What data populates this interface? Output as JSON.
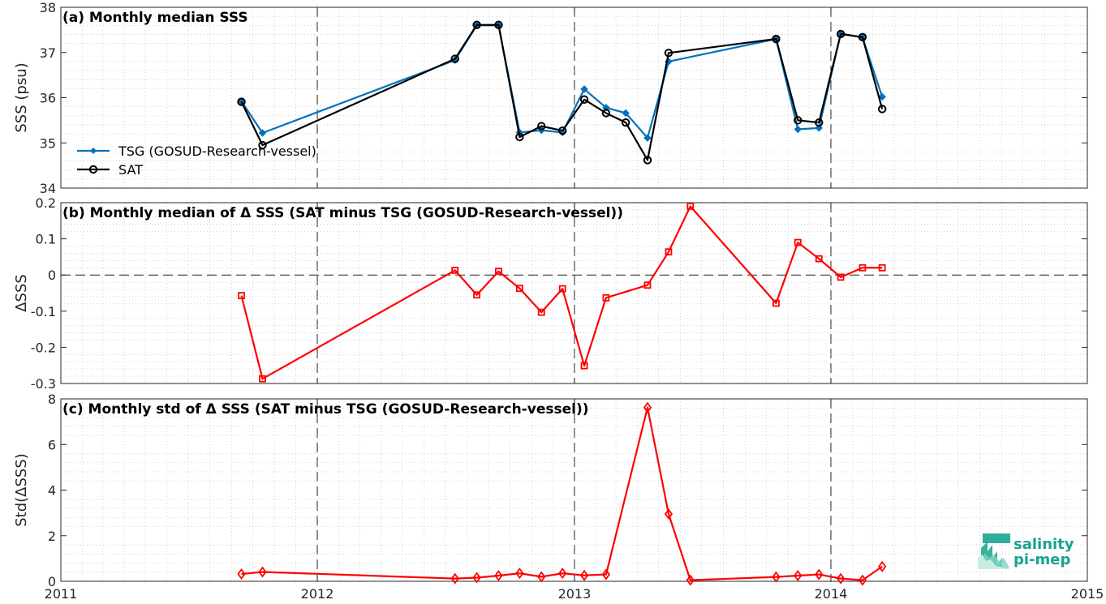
{
  "chart_data": [
    {
      "type": "line",
      "title": "(a) Monthly median SSS",
      "ylabel": "SSS (psu)",
      "ylim": [
        34,
        38
      ],
      "yticks": [
        34,
        35,
        36,
        37,
        38
      ],
      "xlim": [
        "2011-01-01",
        "2015-01-01"
      ],
      "grid": "dotted minor",
      "legend_position": "lower-left",
      "series": [
        {
          "name": "TSG (GOSUD-Research-vessel)",
          "color": "#0072BD",
          "marker": "dot",
          "x": [
            "2011-09-15",
            "2011-10-15",
            "2012-07-15",
            "2012-08-15",
            "2012-09-15",
            "2012-10-15",
            "2012-11-15",
            "2012-12-15",
            "2013-01-15",
            "2013-02-15",
            "2013-03-15",
            "2013-04-15",
            "2013-05-15",
            "2013-10-15",
            "2013-11-15",
            "2013-12-15",
            "2014-01-15",
            "2014-02-15",
            "2014-03-15"
          ],
          "values": [
            35.92,
            35.22,
            36.83,
            37.6,
            37.6,
            35.23,
            35.28,
            35.23,
            36.19,
            35.78,
            35.66,
            35.11,
            36.8,
            37.3,
            35.3,
            35.33,
            37.42,
            37.33,
            36.02
          ]
        },
        {
          "name": "SAT",
          "color": "#000000",
          "marker": "circle",
          "x": [
            "2011-09-15",
            "2011-10-15",
            "2012-07-15",
            "2012-08-15",
            "2012-09-15",
            "2012-10-15",
            "2012-11-15",
            "2012-12-15",
            "2013-01-15",
            "2013-02-15",
            "2013-03-15",
            "2013-04-15",
            "2013-05-15",
            "2013-10-15",
            "2013-11-15",
            "2013-12-15",
            "2014-01-15",
            "2014-02-15",
            "2014-03-15"
          ],
          "values": [
            35.91,
            34.95,
            36.86,
            37.61,
            37.61,
            35.13,
            35.37,
            35.27,
            35.96,
            35.66,
            35.45,
            34.62,
            36.99,
            37.3,
            35.5,
            35.45,
            37.41,
            37.34,
            35.75
          ]
        }
      ]
    },
    {
      "type": "line",
      "title": "(b) Monthly median of Δ SSS (SAT minus TSG (GOSUD-Research-vessel))",
      "ylabel": "ΔSSS",
      "ylim": [
        -0.3,
        0.2
      ],
      "yticks": [
        -0.3,
        -0.2,
        -0.1,
        0,
        0.1,
        0.2
      ],
      "ytick_labels": [
        "-0.3",
        "-0.2",
        "-0.1",
        "0",
        "0.1",
        "0.2"
      ],
      "xlim": [
        "2011-01-01",
        "2015-01-01"
      ],
      "zero_line": "dashed",
      "series": [
        {
          "color": "#FF0000",
          "marker": "square",
          "x": [
            "2011-09-15",
            "2011-10-15",
            "2012-07-15",
            "2012-08-15",
            "2012-09-15",
            "2012-10-15",
            "2012-11-15",
            "2012-12-15",
            "2013-01-15",
            "2013-02-15",
            "2013-04-15",
            "2013-05-15",
            "2013-06-15",
            "2013-10-15",
            "2013-11-15",
            "2013-12-15",
            "2014-01-15",
            "2014-02-15",
            "2014-03-15"
          ],
          "values": [
            -0.057,
            -0.287,
            0.013,
            -0.055,
            0.01,
            -0.037,
            -0.103,
            -0.038,
            -0.251,
            -0.063,
            -0.028,
            0.064,
            0.19,
            -0.078,
            0.09,
            0.045,
            -0.006,
            0.02,
            0.02
          ]
        }
      ]
    },
    {
      "type": "line",
      "title": "(c) Monthly std of Δ SSS (SAT minus TSG (GOSUD-Research-vessel))",
      "ylabel": "Std(ΔSSS)",
      "ylim": [
        0,
        8
      ],
      "yticks": [
        0,
        2,
        4,
        6,
        8
      ],
      "xlim": [
        "2011-01-01",
        "2015-01-01"
      ],
      "xticks": [
        "2011",
        "2012",
        "2013",
        "2014",
        "2015"
      ],
      "series": [
        {
          "color": "#FF0000",
          "marker": "diamond",
          "x": [
            "2011-09-15",
            "2011-10-15",
            "2012-07-15",
            "2012-08-15",
            "2012-09-15",
            "2012-10-15",
            "2012-11-15",
            "2012-12-15",
            "2013-01-15",
            "2013-02-15",
            "2013-04-15",
            "2013-05-15",
            "2013-06-15",
            "2013-10-15",
            "2013-11-15",
            "2013-12-15",
            "2014-01-15",
            "2014-02-15",
            "2014-03-15"
          ],
          "values": [
            0.32,
            0.41,
            0.12,
            0.16,
            0.25,
            0.35,
            0.2,
            0.35,
            0.26,
            0.3,
            7.62,
            2.95,
            0.05,
            0.19,
            0.25,
            0.3,
            0.12,
            0.05,
            0.65
          ]
        }
      ]
    }
  ],
  "logo": {
    "line1": "salinity",
    "line2": "pi-mep",
    "color": "#1aa38f"
  }
}
